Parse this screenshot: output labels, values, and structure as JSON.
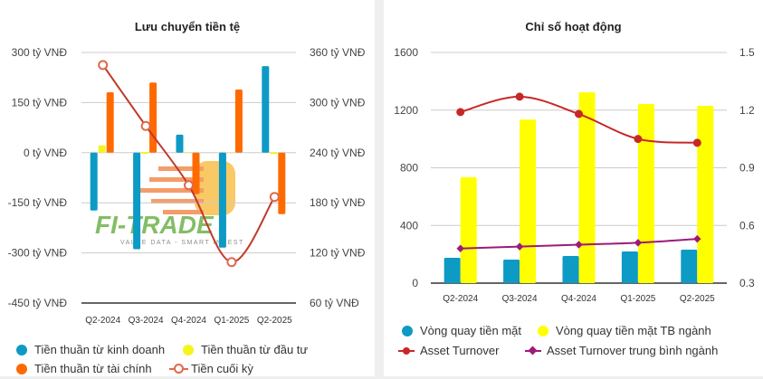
{
  "chart_data": [
    {
      "type": "bar",
      "title": "Lưu chuyển tiền tệ",
      "categories": [
        "Q2-2024",
        "Q3-2024",
        "Q4-2024",
        "Q1-2025",
        "Q2-2025"
      ],
      "y_left": {
        "ticks": [
          "300 tỷ VNĐ",
          "150 tỷ VNĐ",
          "0 tỷ VNĐ",
          "-150 tỷ VNĐ",
          "-300 tỷ VNĐ",
          "-450 tỷ VNĐ"
        ],
        "range": [
          -450,
          300
        ]
      },
      "y_right": {
        "ticks": [
          "360 tỷ VNĐ",
          "300 tỷ VNĐ",
          "240 tỷ VNĐ",
          "180 tỷ VNĐ",
          "120 tỷ VNĐ",
          "60 tỷ VNĐ"
        ],
        "range": [
          60,
          360
        ]
      },
      "series": [
        {
          "name": "Tiền thuần từ kinh doanh",
          "type": "bar",
          "axis": "left",
          "color": "#0d9ac5",
          "values": [
            -173,
            -289,
            54,
            -284,
            259
          ]
        },
        {
          "name": "Tiền thuần từ đầu tư",
          "type": "bar",
          "axis": "left",
          "color": "#f5f51e",
          "values": [
            22,
            2,
            0,
            0,
            1
          ]
        },
        {
          "name": "Tiền thuần từ tài chính",
          "type": "bar",
          "axis": "left",
          "color": "#ff6a00",
          "values": [
            181,
            210,
            -124,
            189,
            -184
          ]
        },
        {
          "name": "Tiền cuối kỳ",
          "type": "line",
          "axis": "right",
          "color": "#c0392b",
          "marker_color": "#e0684a",
          "values": [
            345,
            272,
            201,
            109,
            187
          ]
        }
      ],
      "grid": true,
      "legend": "bottom"
    },
    {
      "type": "bar",
      "title": "Chỉ số hoạt động",
      "categories": [
        "Q2-2024",
        "Q3-2024",
        "Q4-2024",
        "Q1-2025",
        "Q2-2025"
      ],
      "y_left": {
        "ticks": [
          "1600",
          "1200",
          "800",
          "400",
          "0"
        ],
        "range": [
          0,
          1600
        ]
      },
      "y_right": {
        "ticks": [
          "1.5",
          "1.2",
          "0.9",
          "0.6",
          "0.3"
        ],
        "range": [
          0.3,
          1.5
        ]
      },
      "series": [
        {
          "name": "Vòng quay tiền mặt",
          "type": "bar",
          "axis": "left",
          "color": "#0d9ac5",
          "values": [
            176,
            163,
            188,
            220,
            232
          ]
        },
        {
          "name": "Vòng quay tiền mặt TB ngành",
          "type": "bar",
          "axis": "left",
          "color": "#ffff00",
          "values": [
            734,
            1135,
            1324,
            1242,
            1230
          ]
        },
        {
          "name": "Asset Turnover",
          "type": "line",
          "axis": "right",
          "color": "#c62828",
          "values": [
            1.19,
            1.27,
            1.18,
            1.05,
            1.03
          ]
        },
        {
          "name": "Asset Turnover trung bình ngành",
          "type": "line",
          "axis": "right",
          "color": "#9c1a7a",
          "values": [
            0.48,
            0.49,
            0.5,
            0.51,
            0.53
          ]
        }
      ],
      "grid": true,
      "legend": "bottom"
    }
  ],
  "watermark": {
    "brand": "FI-TRADE",
    "tagline": "VALUE DATA - SMART INVEST"
  }
}
